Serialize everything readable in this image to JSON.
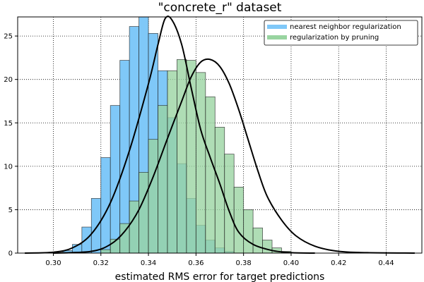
{
  "chart_data": {
    "type": "bar",
    "title": "\"concrete_r\" dataset",
    "xlabel": "estimated RMS error for target predictions",
    "ylabel": "",
    "xlim": [
      0.285,
      0.455
    ],
    "ylim": [
      0,
      27.2
    ],
    "grid": true,
    "legend_position": "top-right",
    "bin_edges": [
      0.304,
      0.308,
      0.312,
      0.316,
      0.32,
      0.324,
      0.328,
      0.332,
      0.336,
      0.34,
      0.344,
      0.348,
      0.352,
      0.356,
      0.36,
      0.364,
      0.368,
      0.372,
      0.376,
      0.38,
      0.384,
      0.388,
      0.392,
      0.396,
      0.4,
      0.404,
      0.408,
      0.412,
      0.416
    ],
    "x_ticks": [
      0.3,
      0.32,
      0.34,
      0.36,
      0.38,
      0.4,
      0.42,
      0.44
    ],
    "x_tick_labels": [
      "0.30",
      "0.32",
      "0.34",
      "0.36",
      "0.38",
      "0.40",
      "0.42",
      "0.44"
    ],
    "y_ticks": [
      0,
      5,
      10,
      15,
      20,
      25
    ],
    "y_tick_labels": [
      "0",
      "5",
      "10",
      "15",
      "20",
      "25"
    ],
    "series": [
      {
        "name": "nearest neighbor regularization",
        "color": "#7fc8f8",
        "values": [
          0.3,
          1.0,
          3.0,
          6.3,
          11.0,
          17.0,
          22.2,
          26.1,
          27.2,
          25.3,
          21.0,
          15.6,
          10.3,
          6.3,
          3.2,
          1.5,
          0.6,
          0.2,
          0,
          0,
          0,
          0,
          0,
          0,
          0,
          0,
          0,
          0
        ],
        "kde": [
          [
            0.288,
            0
          ],
          [
            0.3,
            0.1
          ],
          [
            0.308,
            0.6
          ],
          [
            0.316,
            2.2
          ],
          [
            0.324,
            5.8
          ],
          [
            0.332,
            11.8
          ],
          [
            0.34,
            19.5
          ],
          [
            0.344,
            24.0
          ],
          [
            0.347,
            27.0
          ],
          [
            0.35,
            26.8
          ],
          [
            0.354,
            24.0
          ],
          [
            0.358,
            19.0
          ],
          [
            0.362,
            14.2
          ],
          [
            0.366,
            11.0
          ],
          [
            0.37,
            8.0
          ],
          [
            0.374,
            4.8
          ],
          [
            0.378,
            2.4
          ],
          [
            0.384,
            1.0
          ],
          [
            0.392,
            0.3
          ],
          [
            0.4,
            0.05
          ],
          [
            0.41,
            0
          ]
        ]
      },
      {
        "name": "regularization by pruning",
        "color": "#98d4a0",
        "values": [
          0,
          0,
          0,
          0,
          0.4,
          1.6,
          3.4,
          6.0,
          9.3,
          13.1,
          17.0,
          21.0,
          22.3,
          22.2,
          20.8,
          18.0,
          14.5,
          11.4,
          7.6,
          5.0,
          2.9,
          1.5,
          0.6,
          0.2,
          0,
          0,
          0,
          0
        ],
        "kde": [
          [
            0.3,
            0
          ],
          [
            0.316,
            0.2
          ],
          [
            0.324,
            1.0
          ],
          [
            0.33,
            2.5
          ],
          [
            0.336,
            5.0
          ],
          [
            0.342,
            8.8
          ],
          [
            0.348,
            13.2
          ],
          [
            0.354,
            17.5
          ],
          [
            0.358,
            20.3
          ],
          [
            0.362,
            22.0
          ],
          [
            0.366,
            22.3
          ],
          [
            0.37,
            21.5
          ],
          [
            0.374,
            19.5
          ],
          [
            0.378,
            16.5
          ],
          [
            0.382,
            13.0
          ],
          [
            0.386,
            9.5
          ],
          [
            0.39,
            6.5
          ],
          [
            0.396,
            3.8
          ],
          [
            0.402,
            2.0
          ],
          [
            0.41,
            0.8
          ],
          [
            0.42,
            0.2
          ],
          [
            0.432,
            0.05
          ],
          [
            0.452,
            0
          ]
        ]
      }
    ]
  }
}
